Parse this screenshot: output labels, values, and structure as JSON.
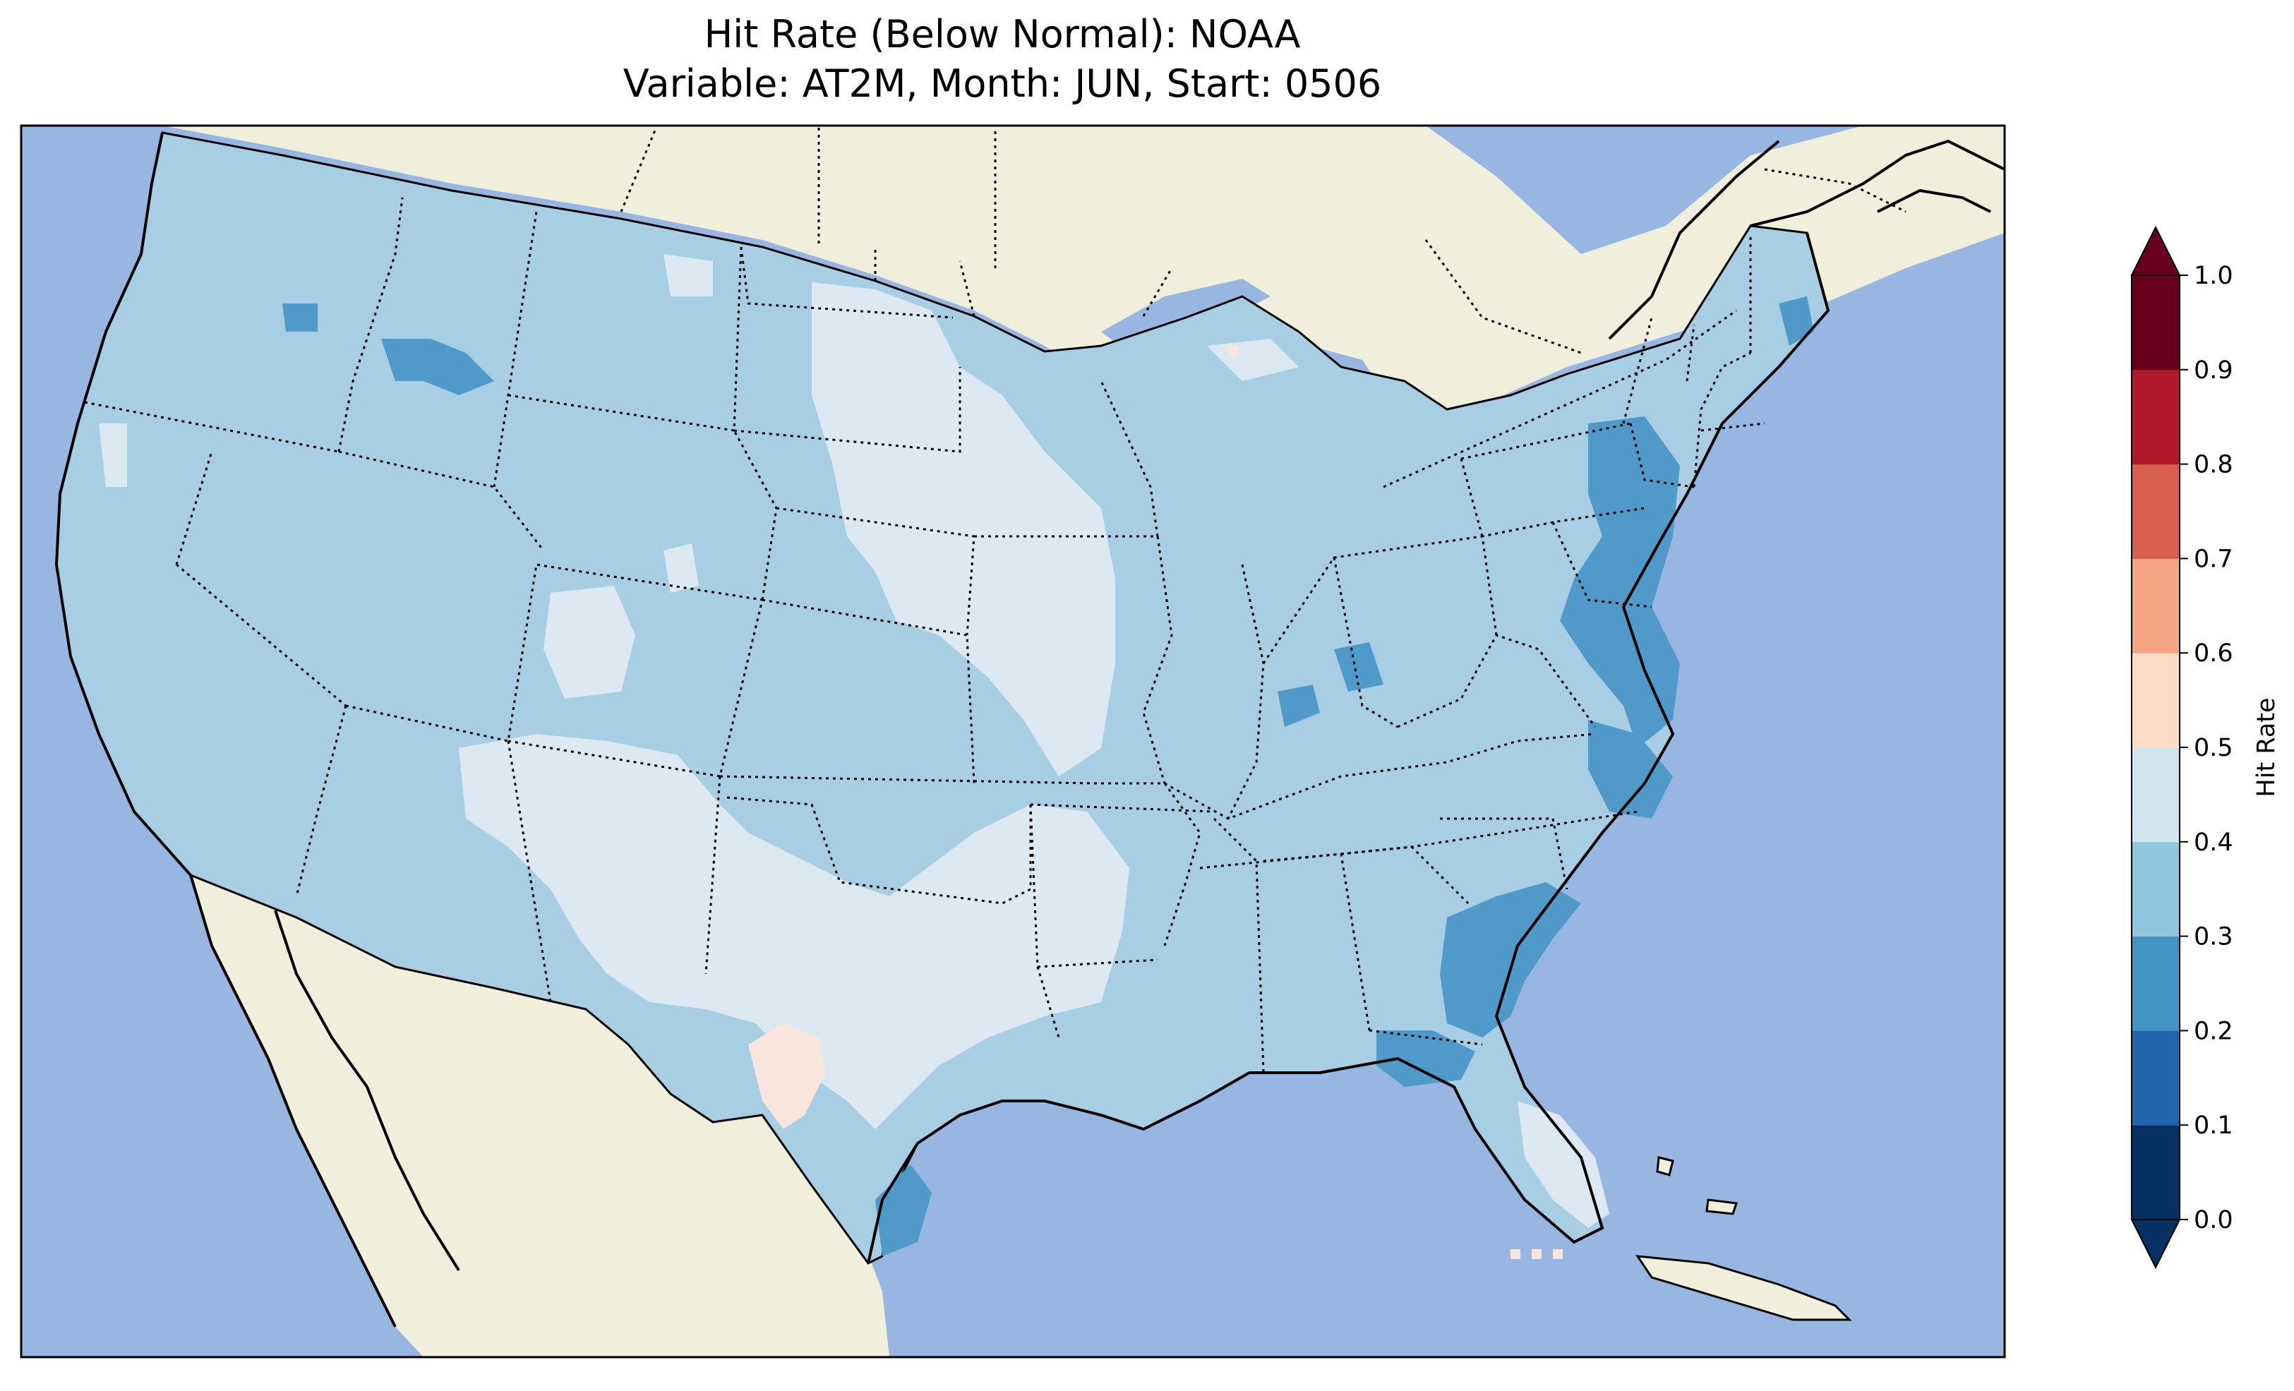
{
  "title": {
    "line1": "Hit Rate (Below Normal): NOAA",
    "line2": "Variable: AT2M, Month: JUN, Start: 0506"
  },
  "colorbar": {
    "label": "Hit Rate",
    "ticks": [
      "0.0",
      "0.1",
      "0.2",
      "0.3",
      "0.4",
      "0.5",
      "0.6",
      "0.7",
      "0.8",
      "0.9",
      "1.0"
    ],
    "colors": [
      "#053061",
      "#2166ac",
      "#4393c3",
      "#92c5de",
      "#d1e5f0",
      "#fddbc7",
      "#f4a582",
      "#d6604d",
      "#b2182b",
      "#67001f"
    ],
    "under_color": "#053061",
    "over_color": "#67001f",
    "extend": "both"
  },
  "map": {
    "region": "Contiguous United States",
    "ocean_color": "#97b6e1",
    "land_color": "#efefdb",
    "predominant_category": "0.3–0.4",
    "highlights": [
      {
        "area": "Southeast coast / Georgia–South Carolina",
        "range": "0.2–0.3"
      },
      {
        "area": "Mid-Atlantic / Chesapeake",
        "range": "0.2–0.3"
      },
      {
        "area": "Texas–Oklahoma–Plains",
        "range": "0.4–0.5"
      },
      {
        "area": "Florida peninsula",
        "range": "0.4–0.5"
      },
      {
        "area": "West Texas spot",
        "range": "0.5–0.6"
      }
    ]
  }
}
